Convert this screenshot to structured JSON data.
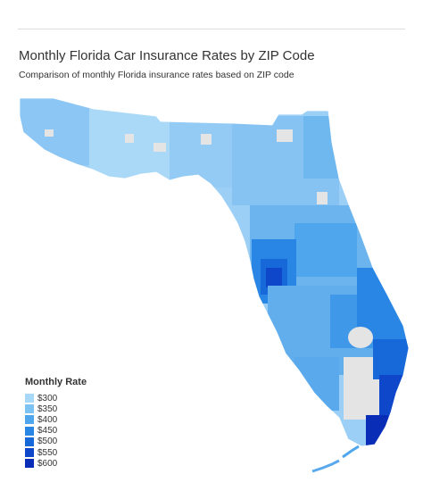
{
  "header": {
    "title": "Monthly Florida Car Insurance Rates by ZIP Code",
    "subtitle": "Comparison of monthly Florida insurance rates based on ZIP code"
  },
  "map": {
    "region": "Florida",
    "no_data_color": "#e4e4e4",
    "border_color": "#ffffff"
  },
  "legend": {
    "title": "Monthly Rate",
    "items": [
      {
        "label": "$300",
        "color": "#a8d8f8"
      },
      {
        "label": "$350",
        "color": "#7cc2f3"
      },
      {
        "label": "$400",
        "color": "#4fa6ec"
      },
      {
        "label": "$450",
        "color": "#2a86e4"
      },
      {
        "label": "$500",
        "color": "#1768d9"
      },
      {
        "label": "$550",
        "color": "#0e47c9"
      },
      {
        "label": "$600",
        "color": "#0a2db8"
      }
    ]
  }
}
